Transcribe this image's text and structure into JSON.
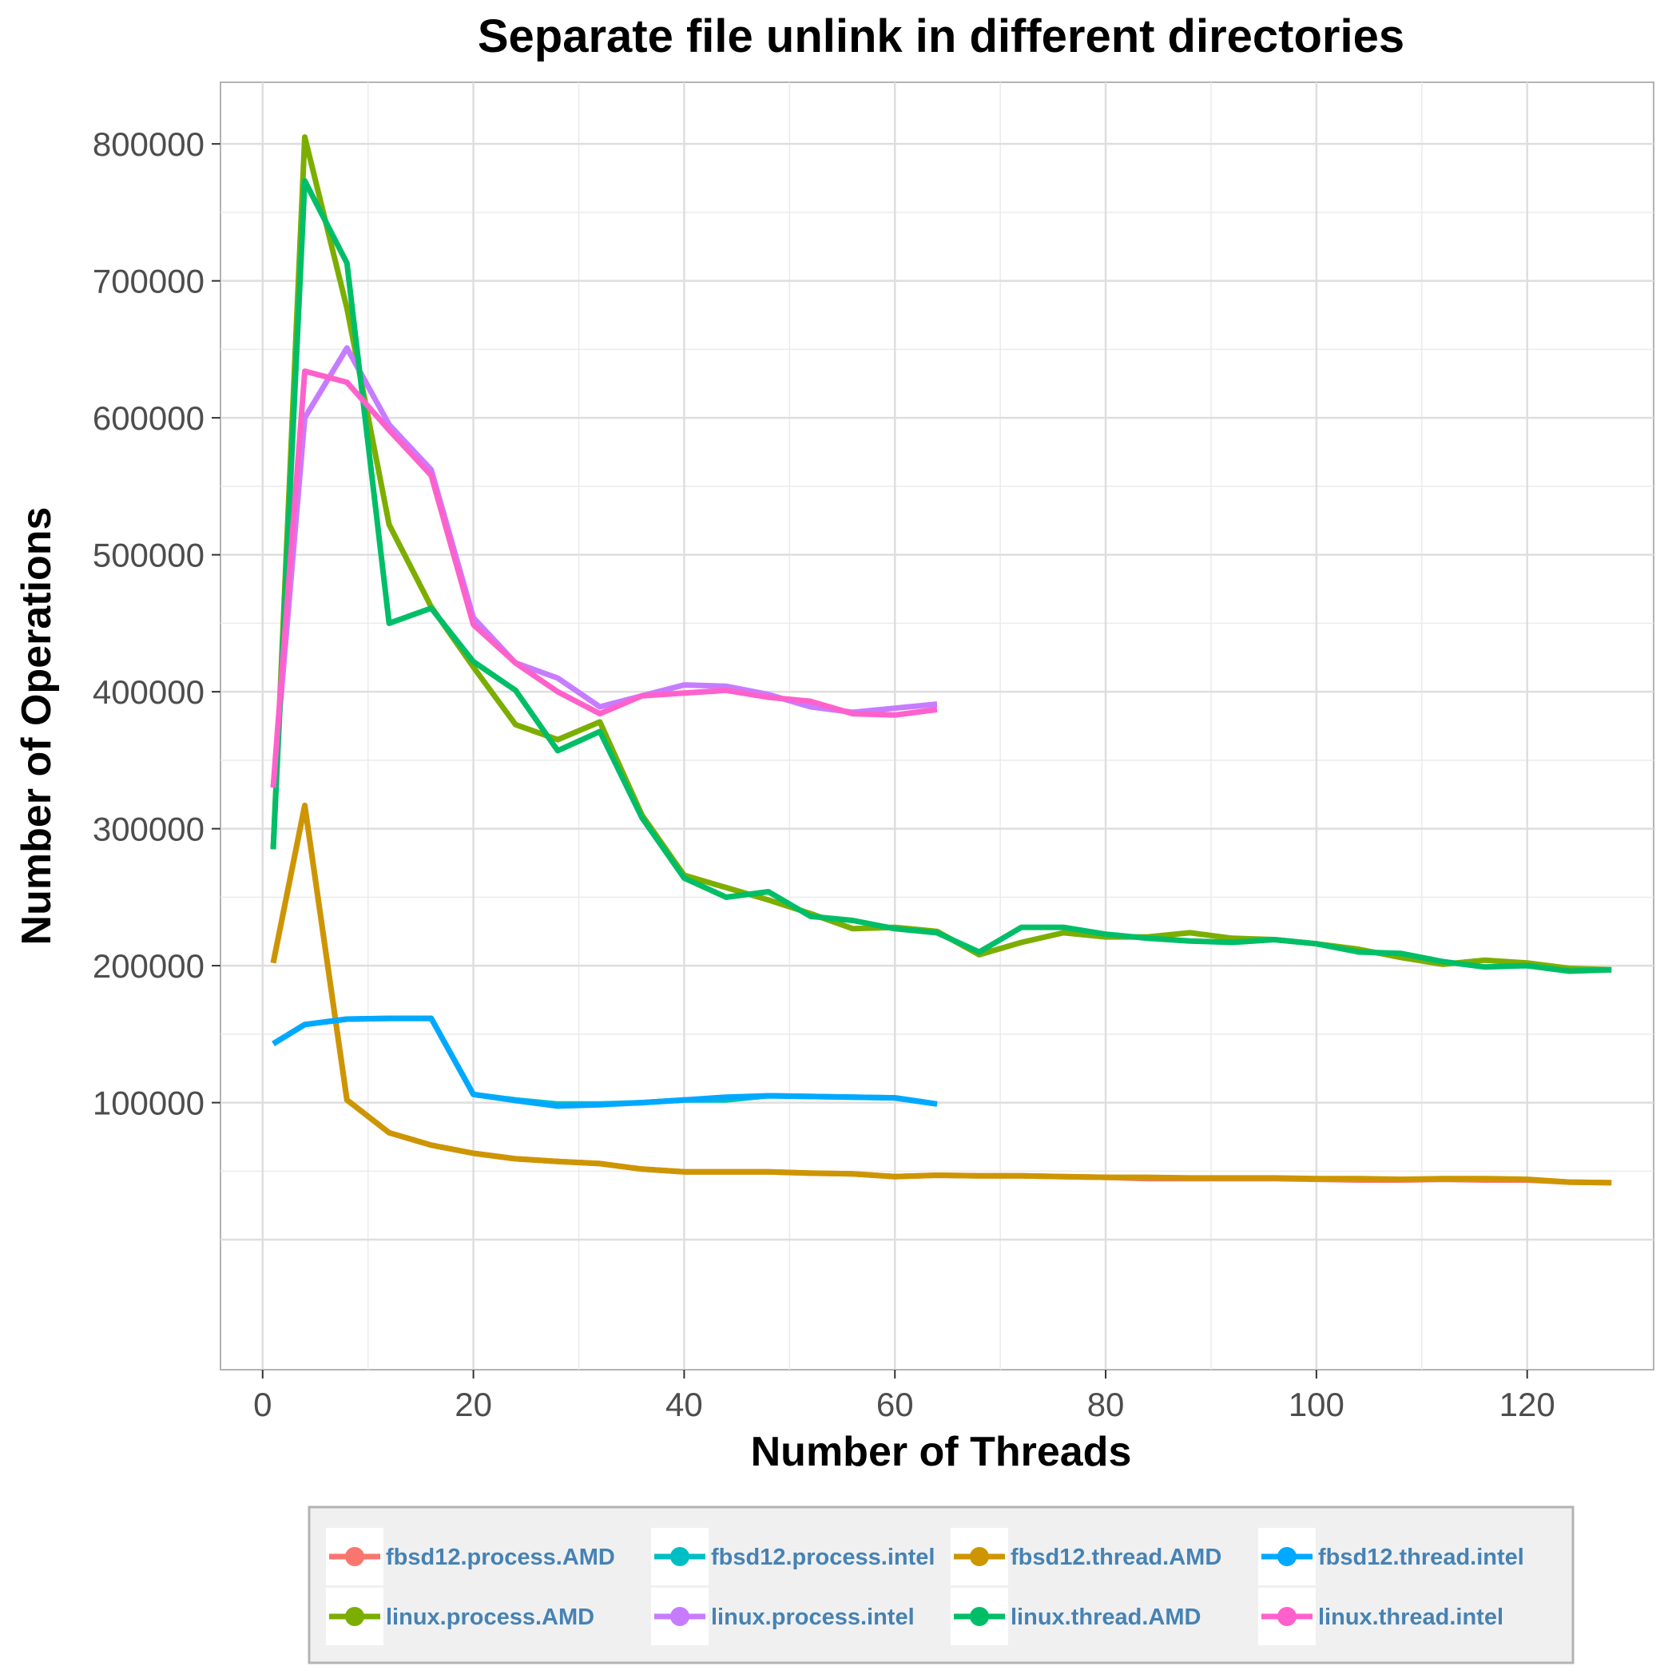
{
  "chart_data": {
    "type": "line",
    "title": "Separate file unlink in different directories",
    "xlabel": "Number of Threads",
    "ylabel": "Number of Operations",
    "xlim": [
      -4,
      132
    ],
    "ylim": [
      -95000,
      845000
    ],
    "xticks": [
      0,
      20,
      40,
      60,
      80,
      100,
      120
    ],
    "xtick_labels": [
      "0",
      "20",
      "40",
      "60",
      "80",
      "100",
      "120"
    ],
    "yticks": [
      100000,
      200000,
      300000,
      400000,
      500000,
      600000,
      700000,
      800000
    ],
    "ytick_labels": [
      "100000",
      "200000",
      "300000",
      "400000",
      "500000",
      "600000",
      "700000",
      "800000"
    ],
    "grid": true,
    "legend_position": "bottom",
    "series": [
      {
        "name": "fbsd12.process.AMD",
        "color": "#F8766D",
        "x": [
          1,
          4,
          8,
          12,
          16,
          20,
          24,
          28,
          32,
          36,
          40,
          44,
          48,
          52,
          56,
          60,
          64,
          68,
          72,
          76,
          80,
          84,
          88,
          92,
          96,
          100,
          104,
          108,
          112,
          116,
          120,
          124,
          128
        ],
        "y": [
          202000,
          317000,
          102000,
          78000,
          69000,
          63000,
          59000,
          57000,
          55500,
          51500,
          49500,
          49500,
          49500,
          48500,
          48000,
          46000,
          47000,
          46500,
          46500,
          46000,
          45500,
          44500,
          44500,
          44500,
          44500,
          44000,
          43500,
          43500,
          44000,
          43500,
          43500,
          42000,
          41500
        ]
      },
      {
        "name": "linux.process.AMD",
        "color": "#7CAE00",
        "x": [
          1,
          4,
          8,
          12,
          16,
          20,
          24,
          28,
          32,
          36,
          40,
          44,
          48,
          52,
          56,
          60,
          64,
          68,
          72,
          76,
          80,
          84,
          88,
          92,
          96,
          100,
          104,
          108,
          112,
          116,
          120,
          124,
          128
        ],
        "y": [
          285000,
          805000,
          680000,
          522000,
          462000,
          418000,
          376000,
          365000,
          378000,
          310000,
          266000,
          257000,
          248000,
          238000,
          227000,
          228000,
          225000,
          208000,
          217000,
          224000,
          221000,
          221000,
          224000,
          220000,
          219000,
          216000,
          212000,
          206000,
          201000,
          204000,
          202000,
          198000,
          197000
        ]
      },
      {
        "name": "fbsd12.process.intel",
        "color": "#00BFC4",
        "x": [
          1,
          4,
          8,
          12,
          16,
          20,
          24,
          28,
          32,
          36,
          40,
          44,
          48,
          52,
          56,
          60,
          64
        ],
        "y": [
          143000,
          157000,
          161000,
          161500,
          161500,
          106000,
          102000,
          99000,
          99000,
          100000,
          102000,
          102000,
          105000,
          104500,
          104000,
          103500,
          99000
        ]
      },
      {
        "name": "linux.process.intel",
        "color": "#C77CFF",
        "x": [
          1,
          4,
          8,
          12,
          16,
          20,
          24,
          28,
          32,
          36,
          40,
          44,
          48,
          52,
          56,
          60,
          64
        ],
        "y": [
          330000,
          600000,
          651000,
          595000,
          562000,
          454000,
          421000,
          410000,
          389000,
          397000,
          405000,
          404000,
          398000,
          389000,
          385000,
          388000,
          391000
        ]
      },
      {
        "name": "fbsd12.thread.AMD",
        "color": "#CD9600",
        "x": [
          1,
          4,
          8,
          12,
          16,
          20,
          24,
          28,
          32,
          36,
          40,
          44,
          48,
          52,
          56,
          60,
          64,
          68,
          72,
          76,
          80,
          84,
          88,
          92,
          96,
          100,
          104,
          108,
          112,
          116,
          120,
          124,
          128
        ],
        "y": [
          202000,
          317000,
          102000,
          78000,
          69000,
          63000,
          59000,
          57000,
          55500,
          51500,
          49500,
          49500,
          49500,
          48500,
          48000,
          46000,
          47000,
          46500,
          46500,
          46000,
          45500,
          45500,
          45000,
          45000,
          45000,
          44500,
          44500,
          44000,
          44500,
          44500,
          44000,
          42000,
          41500
        ]
      },
      {
        "name": "linux.thread.AMD",
        "color": "#00BE67",
        "x": [
          1,
          4,
          8,
          12,
          16,
          20,
          24,
          28,
          32,
          36,
          40,
          44,
          48,
          52,
          56,
          60,
          64,
          68,
          72,
          76,
          80,
          84,
          88,
          92,
          96,
          100,
          104,
          108,
          112,
          116,
          120,
          124,
          128
        ],
        "y": [
          285000,
          773000,
          713000,
          450000,
          461000,
          422000,
          401000,
          357000,
          371000,
          308000,
          264000,
          250000,
          254000,
          236000,
          233000,
          227000,
          224000,
          210000,
          228000,
          228000,
          223000,
          220000,
          218000,
          217000,
          219000,
          216000,
          210000,
          209000,
          203000,
          199000,
          200000,
          196000,
          197000
        ]
      },
      {
        "name": "fbsd12.thread.intel",
        "color": "#00A9FF",
        "x": [
          1,
          4,
          8,
          12,
          16,
          20,
          24,
          28,
          32,
          36,
          40,
          44,
          48,
          52,
          56,
          60,
          64
        ],
        "y": [
          143000,
          157000,
          161000,
          161500,
          161500,
          106000,
          101500,
          97500,
          98500,
          100000,
          102000,
          104000,
          105000,
          104500,
          104000,
          103500,
          99000
        ]
      },
      {
        "name": "linux.thread.intel",
        "color": "#FF61CC",
        "x": [
          1,
          4,
          8,
          12,
          16,
          20,
          24,
          28,
          32,
          36,
          40,
          44,
          48,
          52,
          56,
          60,
          64
        ],
        "y": [
          330000,
          634000,
          626000,
          591000,
          558000,
          449000,
          421000,
          400000,
          384000,
          397000,
          399000,
          401000,
          396000,
          393000,
          384000,
          383000,
          387000
        ]
      }
    ]
  }
}
